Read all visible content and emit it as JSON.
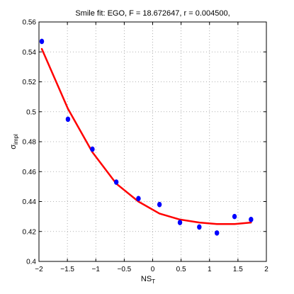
{
  "chart_data": {
    "type": "scatter",
    "title": "Smile fit: EGO, F = 18.672647, r = 0.004500,",
    "xlabel": {
      "main": "NS",
      "sub": "T"
    },
    "ylabel": {
      "main": "σ",
      "sub": "impl"
    },
    "xlim": [
      -2,
      2
    ],
    "ylim": [
      0.4,
      0.56
    ],
    "xticks": [
      -2,
      -1.5,
      -1,
      -0.5,
      0,
      0.5,
      1,
      1.5,
      2
    ],
    "xtick_labels": [
      "−2",
      "−1.5",
      "−1",
      "−0.5",
      "0",
      "0.5",
      "1",
      "1.5",
      "2"
    ],
    "yticks": [
      0.4,
      0.42,
      0.44,
      0.46,
      0.48,
      0.5,
      0.52,
      0.54,
      0.56
    ],
    "ytick_labels": [
      "0.4",
      "0.42",
      "0.44",
      "0.46",
      "0.48",
      "0.5",
      "0.52",
      "0.54",
      "0.56"
    ],
    "grid": true,
    "series": [
      {
        "kind": "markers",
        "color": "#0000ff",
        "x": [
          -1.95,
          -1.49,
          -1.06,
          -0.64,
          -0.25,
          0.12,
          0.48,
          0.82,
          1.13,
          1.44,
          1.73
        ],
        "y": [
          0.547,
          0.495,
          0.475,
          0.453,
          0.442,
          0.438,
          0.426,
          0.423,
          0.419,
          0.43,
          0.428
        ]
      },
      {
        "kind": "line",
        "color": "#ff0000",
        "x": [
          -1.95,
          -1.49,
          -1.06,
          -0.64,
          -0.25,
          0.12,
          0.48,
          0.82,
          1.13,
          1.44,
          1.73
        ],
        "y": [
          0.542,
          0.502,
          0.473,
          0.452,
          0.44,
          0.432,
          0.428,
          0.426,
          0.425,
          0.425,
          0.426
        ]
      }
    ]
  }
}
